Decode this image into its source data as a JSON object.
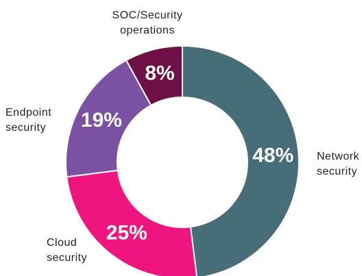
{
  "chart_data": {
    "type": "donut",
    "categories": [
      "Network security",
      "Cloud security",
      "Endpoint security",
      "SOC/Security operations"
    ],
    "values": [
      48,
      25,
      19,
      8
    ],
    "value_labels": [
      "48%",
      "25%",
      "19%",
      "8%"
    ],
    "colors": [
      "#476e78",
      "#f0157e",
      "#7b52a3",
      "#6e0f45"
    ]
  }
}
